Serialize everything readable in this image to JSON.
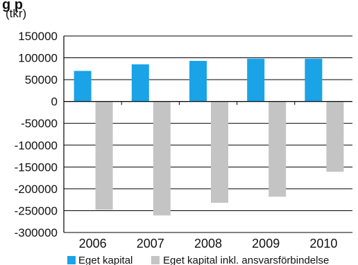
{
  "chart_data": {
    "type": "bar",
    "title_fragment": "g p",
    "unit_label": "(tkr)",
    "categories": [
      "2006",
      "2007",
      "2008",
      "2009",
      "2010"
    ],
    "series": [
      {
        "name": "Eget kapital",
        "color": "#1aa3e6",
        "values": [
          70000,
          85000,
          93000,
          98000,
          98000
        ]
      },
      {
        "name": "Eget kapital inkl. ansvarsförbindelse",
        "color": "#c4c4c4",
        "values": [
          -248000,
          -261000,
          -232000,
          -218000,
          -161000
        ]
      }
    ],
    "ylim": [
      -300000,
      150000
    ],
    "yticks": [
      150000,
      100000,
      50000,
      0,
      -50000,
      -100000,
      -150000,
      -200000,
      -250000,
      -300000
    ],
    "ytick_labels": [
      "150000",
      "100000",
      "50000",
      "0",
      "-50000",
      "-100000",
      "-150000",
      "-200000",
      "-250000",
      "-300000"
    ],
    "grid": true,
    "legend_position": "bottom"
  }
}
